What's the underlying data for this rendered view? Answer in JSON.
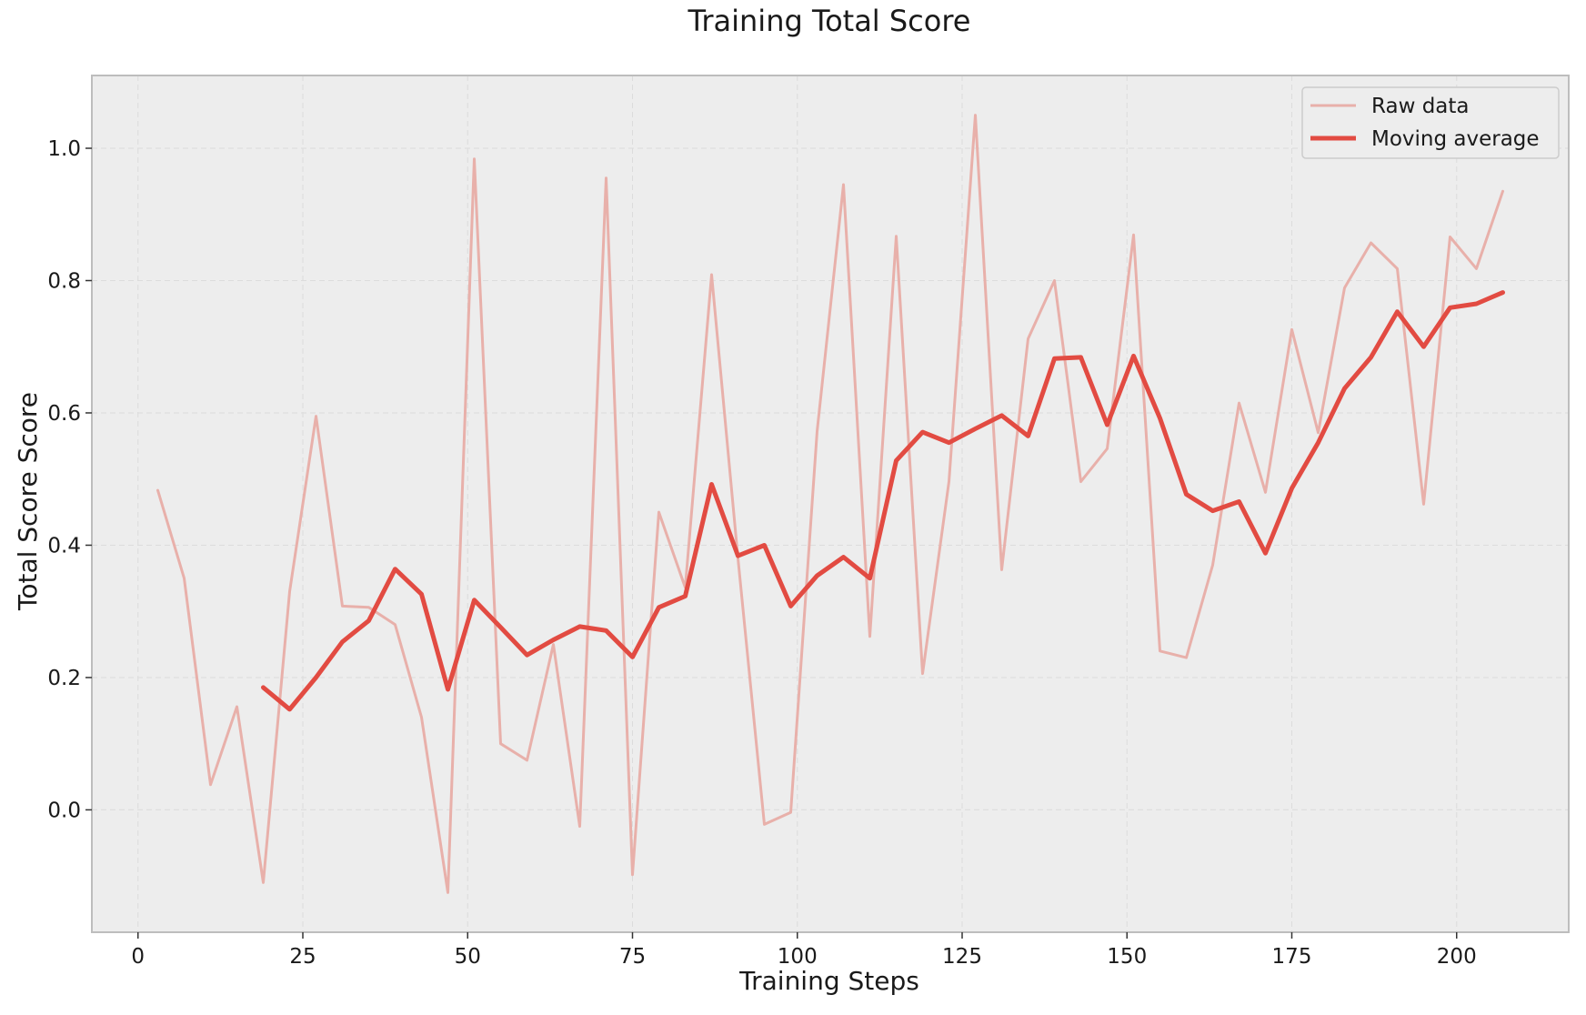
{
  "chart_data": {
    "type": "line",
    "title": "Training Total Score",
    "xlabel": "Training Steps",
    "ylabel": "Total Score Score",
    "xlim": [
      -7,
      217
    ],
    "ylim": [
      -0.185,
      1.11
    ],
    "x_ticks": [
      0,
      25,
      50,
      75,
      100,
      125,
      150,
      175,
      200
    ],
    "y_ticks": [
      0.0,
      0.2,
      0.4,
      0.6,
      0.8,
      1.0
    ],
    "x_tick_labels": [
      "0",
      "25",
      "50",
      "75",
      "100",
      "125",
      "150",
      "175",
      "200"
    ],
    "y_tick_labels": [
      "0.0",
      "0.2",
      "0.4",
      "0.6",
      "0.8",
      "1.0"
    ],
    "grid": true,
    "legend_position": "top-right",
    "colors": {
      "raw": "#e8b0aa",
      "moving": "#e24b42",
      "plot_bg": "#ededed",
      "grid": "#dcdcdc",
      "frame": "#bdbdbd"
    },
    "series": [
      {
        "name": "Raw data",
        "x": [
          3,
          7,
          11,
          15,
          19,
          23,
          27,
          31,
          35,
          39,
          43,
          47,
          51,
          55,
          59,
          63,
          67,
          71,
          75,
          79,
          83,
          87,
          91,
          95,
          99,
          103,
          107,
          111,
          115,
          119,
          123,
          127,
          131,
          135,
          139,
          143,
          147,
          151,
          155,
          159,
          163,
          167,
          171,
          175,
          179,
          183,
          187,
          191,
          195,
          199,
          203,
          207
        ],
        "y": [
          0.483,
          0.35,
          0.038,
          0.156,
          -0.11,
          0.33,
          0.595,
          0.308,
          0.306,
          0.28,
          0.14,
          -0.125,
          0.984,
          0.1,
          0.075,
          0.25,
          -0.025,
          0.955,
          -0.098,
          0.45,
          0.336,
          0.809,
          0.38,
          -0.022,
          -0.004,
          0.572,
          0.945,
          0.262,
          0.867,
          0.206,
          0.496,
          1.05,
          0.363,
          0.712,
          0.8,
          0.496,
          0.546,
          0.869,
          0.24,
          0.23,
          0.37,
          0.615,
          0.48,
          0.726,
          0.57,
          0.789,
          0.857,
          0.818,
          0.462,
          0.866,
          0.818,
          0.935
        ]
      },
      {
        "name": "Moving average",
        "x": [
          19,
          23,
          27,
          31,
          35,
          39,
          43,
          47,
          51,
          55,
          59,
          63,
          67,
          71,
          75,
          79,
          83,
          87,
          91,
          95,
          99,
          103,
          107,
          111,
          115,
          119,
          123,
          127,
          131,
          135,
          139,
          143,
          147,
          151,
          155,
          159,
          163,
          167,
          171,
          175,
          179,
          183,
          187,
          191,
          195,
          199,
          203,
          207
        ],
        "y": [
          0.185,
          0.152,
          0.2,
          0.254,
          0.286,
          0.364,
          0.326,
          0.182,
          0.317,
          0.276,
          0.234,
          0.257,
          0.277,
          0.271,
          0.231,
          0.306,
          0.323,
          0.492,
          0.384,
          0.4,
          0.308,
          0.354,
          0.382,
          0.35,
          0.528,
          0.571,
          0.555,
          0.576,
          0.596,
          0.565,
          0.682,
          0.684,
          0.582,
          0.686,
          0.592,
          0.477,
          0.452,
          0.466,
          0.388,
          0.486,
          0.555,
          0.637,
          0.684,
          0.753,
          0.7,
          0.759,
          0.765,
          0.782
        ]
      }
    ]
  }
}
